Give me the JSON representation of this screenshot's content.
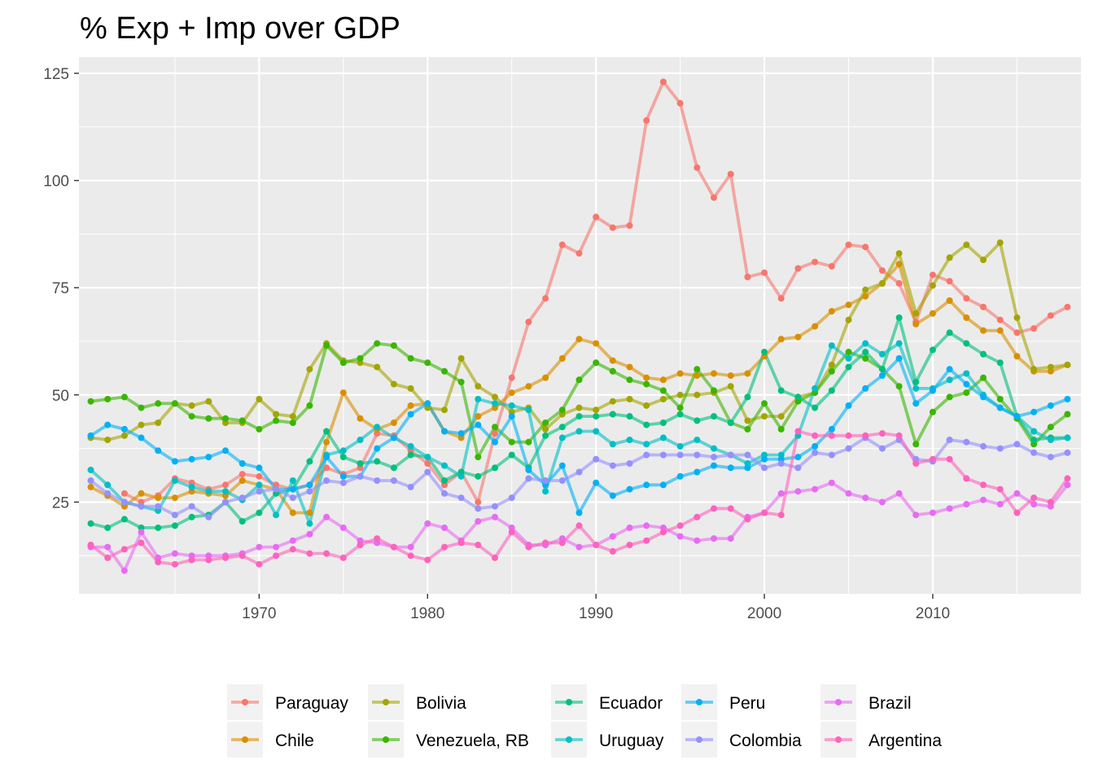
{
  "chart_data": {
    "type": "line",
    "title": "% Exp + Imp over GDP",
    "xlabel": "",
    "ylabel": "",
    "xlim": [
      1959.3,
      2018.8
    ],
    "ylim": [
      3.6,
      128.8
    ],
    "x_ticks": [
      1970,
      1980,
      1990,
      2000,
      2010
    ],
    "y_ticks": [
      25,
      50,
      75,
      100,
      125
    ],
    "grid": true,
    "legend_position": "bottom",
    "x": [
      1960,
      1961,
      1962,
      1963,
      1964,
      1965,
      1966,
      1967,
      1968,
      1969,
      1970,
      1971,
      1972,
      1973,
      1974,
      1975,
      1976,
      1977,
      1978,
      1979,
      1980,
      1981,
      1982,
      1983,
      1984,
      1985,
      1986,
      1987,
      1988,
      1989,
      1990,
      1991,
      1992,
      1993,
      1994,
      1995,
      1996,
      1997,
      1998,
      1999,
      2000,
      2001,
      2002,
      2003,
      2004,
      2005,
      2006,
      2007,
      2008,
      2009,
      2010,
      2011,
      2012,
      2013,
      2014,
      2015,
      2016,
      2017,
      2018
    ],
    "series": [
      {
        "name": "Paraguay",
        "color": "#F8766D",
        "values": [
          null,
          null,
          27,
          25,
          26.5,
          30.5,
          29.5,
          28,
          29,
          31.5,
          31,
          29,
          28,
          29,
          33,
          31.5,
          33,
          41,
          40.5,
          37,
          34,
          29,
          32,
          25,
          41,
          54,
          67,
          72.5,
          85,
          83,
          91.5,
          89,
          89.5,
          114,
          123,
          118,
          103,
          96,
          101.5,
          77.5,
          78.5,
          72.5,
          79.5,
          81,
          80,
          85,
          84.5,
          79,
          76,
          67,
          78,
          76.5,
          72.5,
          70.5,
          67.5,
          64.5,
          65.5,
          68.5,
          70.5
        ]
      },
      {
        "name": "Chile",
        "color": "#D89000",
        "values": [
          28.5,
          26.5,
          24,
          27,
          26,
          26,
          27.5,
          27,
          26.5,
          30,
          29,
          28,
          22.5,
          22.5,
          39,
          50.5,
          44.5,
          42,
          43.5,
          47.5,
          48,
          41.5,
          40,
          45,
          47,
          50.5,
          52,
          54,
          58.5,
          63,
          62,
          58,
          56.5,
          54,
          53.5,
          55,
          54.5,
          55,
          54.5,
          55,
          59,
          63,
          63.5,
          66,
          69.5,
          71,
          73,
          76,
          80.5,
          66.5,
          69,
          72,
          68,
          65,
          65,
          59,
          55.5,
          55.5,
          57
        ]
      },
      {
        "name": "Bolivia",
        "color": "#A3A500",
        "values": [
          40,
          39.5,
          40.5,
          43,
          43.5,
          48,
          47.5,
          48.5,
          43.5,
          43.5,
          49,
          45.5,
          45,
          56,
          62,
          58,
          57.5,
          56.5,
          52.5,
          51.5,
          47,
          46.5,
          58.5,
          52,
          49.5,
          46,
          47,
          42,
          45.5,
          47,
          46.5,
          48.5,
          49,
          47.5,
          49,
          50,
          50,
          50.5,
          52,
          44,
          45,
          45,
          49.5,
          50.5,
          57,
          67.5,
          74.5,
          76,
          83,
          69,
          75.5,
          82,
          85,
          81.5,
          85.5,
          68,
          56,
          56.5,
          57
        ]
      },
      {
        "name": "Venezuela, RB",
        "color": "#39B600",
        "values": [
          48.5,
          49,
          49.5,
          47,
          48,
          48,
          45,
          44.5,
          44.5,
          44,
          42,
          44,
          43.5,
          47.5,
          61.5,
          57.5,
          58.5,
          62,
          61.5,
          58.5,
          57.5,
          55.5,
          53,
          35.5,
          42.5,
          39,
          39,
          43.5,
          46.5,
          53.5,
          57.5,
          55.5,
          53.5,
          52.5,
          51,
          47,
          56,
          51,
          43.5,
          42,
          48,
          42,
          48.5,
          50.5,
          55.5,
          60,
          58.5,
          56,
          52,
          38.5,
          46,
          49.5,
          50.5,
          54,
          49,
          44.5,
          38.5,
          42.5,
          45.5
        ]
      },
      {
        "name": "Ecuador",
        "color": "#00BF7D",
        "values": [
          20,
          19,
          21,
          19,
          19,
          19.5,
          21.5,
          22,
          25,
          20.5,
          22.5,
          27,
          28,
          34.5,
          41.5,
          35.5,
          34,
          34.5,
          33,
          36,
          35.5,
          30,
          32,
          31,
          33,
          36,
          33,
          40.5,
          42.5,
          45,
          45,
          45.5,
          45,
          43,
          43.5,
          45.5,
          44,
          45,
          43.5,
          49.5,
          60,
          51,
          49.5,
          47,
          51,
          56.5,
          60,
          56,
          68,
          53,
          60.5,
          64.5,
          62,
          59.5,
          57.5,
          45,
          39.5,
          40,
          40
        ]
      },
      {
        "name": "Uruguay",
        "color": "#00BFC4",
        "values": [
          32.5,
          29,
          25,
          24,
          23,
          30,
          28.5,
          27.5,
          27.5,
          25.5,
          29,
          22,
          30,
          20,
          36,
          37,
          39.5,
          42.5,
          40,
          38,
          35.5,
          33.5,
          31,
          49,
          48,
          47.5,
          46.5,
          27.5,
          40,
          41.5,
          41.5,
          38.5,
          39.5,
          38.5,
          40,
          38,
          39.5,
          37.5,
          36,
          34,
          36,
          36,
          40.5,
          51.5,
          61.5,
          58.5,
          62,
          59.5,
          62,
          51.5,
          51.5,
          53.5,
          55,
          50,
          47,
          45,
          41.5,
          39.5,
          40
        ]
      },
      {
        "name": "Peru",
        "color": "#00B0F6",
        "values": [
          40.5,
          43,
          42,
          40,
          37,
          34.5,
          35,
          35.5,
          37,
          34,
          33,
          28,
          28,
          29,
          35.5,
          31,
          31,
          37.5,
          40,
          45.5,
          48,
          41.5,
          41,
          43,
          39,
          45,
          32.5,
          29,
          33.5,
          22.5,
          29.5,
          26.5,
          28,
          29,
          29,
          31,
          32,
          33.5,
          33,
          33,
          35,
          35,
          35.5,
          38,
          42,
          47.5,
          51.5,
          54.5,
          58.5,
          48,
          51,
          56,
          52.5,
          49.5,
          47,
          45,
          46,
          47.5,
          49
        ]
      },
      {
        "name": "Colombia",
        "color": "#9590FF",
        "values": [
          30,
          27,
          25,
          24,
          24,
          22,
          24,
          21.5,
          25,
          26,
          27.5,
          28,
          26,
          27.5,
          30,
          29.5,
          31,
          30,
          30,
          28.5,
          32,
          27,
          26,
          23.5,
          24,
          26,
          30.5,
          30,
          30,
          32,
          35,
          33.5,
          34,
          36,
          36,
          36,
          36,
          35.5,
          36,
          36,
          33,
          34,
          33,
          36.5,
          36,
          37.5,
          40,
          37.5,
          39.5,
          35,
          34.5,
          39.5,
          39,
          38,
          37.5,
          38.5,
          36.5,
          35.5,
          36.5
        ]
      },
      {
        "name": "Brazil",
        "color": "#E76BF3",
        "values": [
          14.5,
          14.5,
          9,
          18,
          12,
          13,
          12.5,
          12.5,
          12.5,
          13,
          14.5,
          14.5,
          16,
          17.5,
          21.5,
          19,
          16,
          15.5,
          14.5,
          14.5,
          20,
          19,
          16,
          20.5,
          21.5,
          19,
          15,
          15,
          16.5,
          14.5,
          15,
          17,
          19,
          19.5,
          19,
          17,
          16,
          16.5,
          16.5,
          21.5,
          22.5,
          27,
          27.5,
          28,
          29.5,
          27,
          26,
          25,
          27,
          22,
          22.5,
          23.5,
          24.5,
          25.5,
          24.5,
          27,
          24.5,
          24,
          29
        ]
      },
      {
        "name": "Argentina",
        "color": "#FF62BC",
        "values": [
          15,
          12,
          14,
          15.5,
          11,
          10.5,
          11.5,
          11.5,
          12,
          12.5,
          10.5,
          12.5,
          14,
          13,
          13,
          12,
          15,
          16.5,
          14.5,
          12.5,
          11.5,
          14.5,
          15.5,
          15,
          12,
          18,
          14.5,
          15.5,
          15.5,
          19.5,
          15,
          13.5,
          15,
          16,
          18,
          19.5,
          21.5,
          23.5,
          23.5,
          21,
          22.5,
          22,
          41.5,
          40.5,
          40.5,
          40.5,
          40.5,
          41,
          40.5,
          34,
          35,
          35,
          30.5,
          29,
          28,
          22.5,
          26,
          25,
          30.5
        ]
      }
    ]
  }
}
